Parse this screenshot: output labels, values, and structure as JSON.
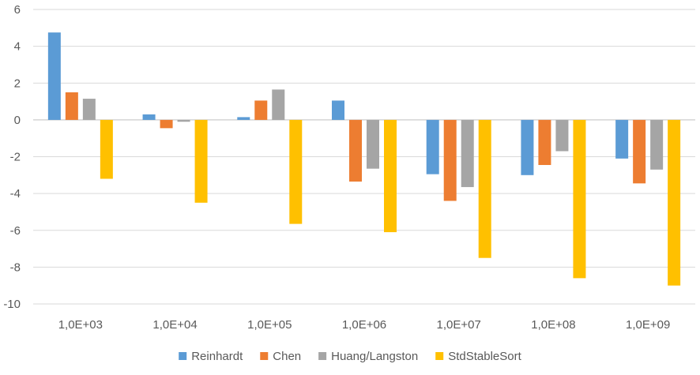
{
  "chart_data": {
    "type": "bar",
    "title": "",
    "xlabel": "",
    "ylabel": "",
    "ylim": [
      -10,
      6
    ],
    "ytick_step": 2,
    "grid": true,
    "legend_position": "bottom",
    "categories": [
      "1,0E+03",
      "1,0E+04",
      "1,0E+05",
      "1,0E+06",
      "1,0E+07",
      "1,0E+08",
      "1,0E+09"
    ],
    "series": [
      {
        "name": "Reinhardt",
        "color": "#5B9BD5",
        "values": [
          4.75,
          0.3,
          0.15,
          1.05,
          -2.95,
          -3.0,
          -2.1
        ]
      },
      {
        "name": "Chen",
        "color": "#ED7D31",
        "values": [
          1.5,
          -0.45,
          1.05,
          -3.35,
          -4.4,
          -2.45,
          -3.45
        ]
      },
      {
        "name": "Huang/Langston",
        "color": "#A5A5A5",
        "values": [
          1.15,
          -0.1,
          1.65,
          -2.65,
          -3.65,
          -1.7,
          -2.7
        ]
      },
      {
        "name": "StdStableSort",
        "color": "#FFC000",
        "values": [
          -3.2,
          -4.5,
          -5.65,
          -6.1,
          -7.5,
          -8.6,
          -9.0
        ]
      }
    ]
  }
}
